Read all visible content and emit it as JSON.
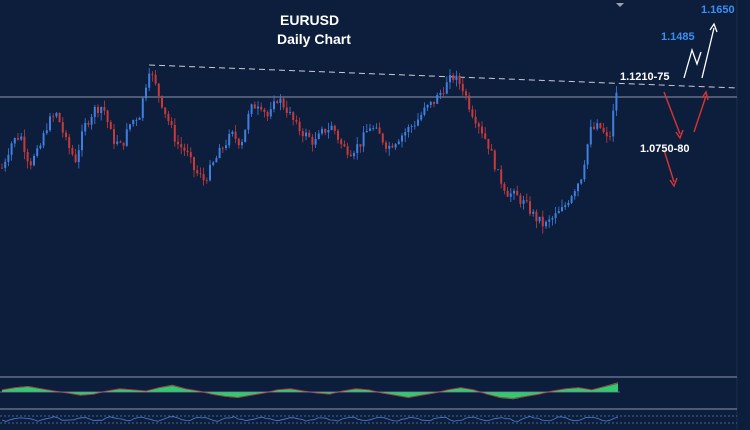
{
  "chart_data": {
    "type": "candlestick",
    "title": "EURUSD",
    "subtitle": "Daily Chart",
    "colors": {
      "background": "#0c1e3c",
      "bull": "#3f7fe0",
      "bear": "#c73a3a",
      "trendline": "#c8ccd8",
      "level_line": "#8c96aa",
      "oscillator_pos": "#2ecc71",
      "oscillator_neg": "#1f9e4e",
      "blue_label": "#3d8ef0",
      "white_label": "#ffffff"
    },
    "price_path": [
      1.1,
      1.106,
      1.108,
      1.101,
      1.104,
      1.111,
      1.113,
      1.106,
      1.102,
      1.11,
      1.114,
      1.115,
      1.107,
      1.105,
      1.111,
      1.113,
      1.124,
      1.118,
      1.112,
      1.106,
      1.104,
      1.099,
      1.097,
      1.101,
      1.105,
      1.108,
      1.106,
      1.114,
      1.116,
      1.112,
      1.117,
      1.114,
      1.11,
      1.108,
      1.106,
      1.109,
      1.11,
      1.105,
      1.104,
      1.106,
      1.11,
      1.108,
      1.105,
      1.107,
      1.109,
      1.111,
      1.114,
      1.116,
      1.119,
      1.122,
      1.12,
      1.114,
      1.11,
      1.105,
      1.098,
      1.094,
      1.093,
      1.091,
      1.088,
      1.086,
      1.088,
      1.09,
      1.094,
      1.098,
      1.109,
      1.11,
      1.106,
      1.121
    ],
    "levels": {
      "resistance": "1.1210-75",
      "support": "1.0750-80",
      "target_1": "1.1485",
      "target_2": "1.1650"
    },
    "trendline": {
      "from_index": 16,
      "from_price": 1.124,
      "to_index": 67,
      "to_price": 1.119
    },
    "horizontal_level": 1.118,
    "y_range": [
      1.06,
      1.14
    ],
    "oscillator": [
      0.2,
      0.4,
      0.5,
      0.3,
      0.1,
      -0.1,
      -0.3,
      -0.2,
      0.1,
      0.3,
      0.2,
      0.1,
      0.4,
      0.6,
      0.3,
      0.1,
      -0.2,
      -0.4,
      -0.5,
      -0.3,
      -0.1,
      0.2,
      0.3,
      0.1,
      -0.1,
      -0.2,
      0.1,
      0.3,
      0.2,
      -0.1,
      -0.3,
      -0.5,
      -0.3,
      -0.1,
      0.2,
      0.4,
      0.2,
      -0.2,
      -0.5,
      -0.6,
      -0.4,
      -0.2,
      0.1,
      0.3,
      0.4,
      0.2,
      0.5,
      0.8
    ],
    "grid": false
  }
}
